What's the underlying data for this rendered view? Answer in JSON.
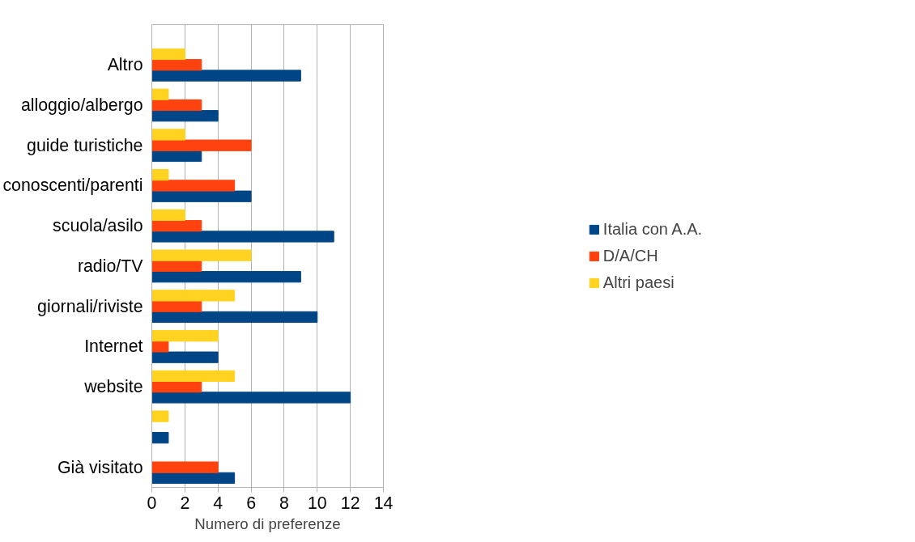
{
  "chart_data": {
    "type": "bar",
    "orientation": "horizontal",
    "xlabel": "Numero di preferenze",
    "categories": [
      "Altro",
      "alloggio/albergo",
      "guide turistiche",
      "conoscenti/parenti",
      "scuola/asilo",
      "radio/TV",
      "giornali/riviste",
      "Internet",
      "website",
      null,
      "Già visitato"
    ],
    "series": [
      {
        "name": "Italia con A.A.",
        "color": "#004586",
        "values": [
          9,
          4,
          3,
          6,
          11,
          9,
          10,
          4,
          12,
          1,
          5
        ]
      },
      {
        "name": "D/A/CH",
        "color": "#ff420e",
        "values": [
          3,
          3,
          6,
          5,
          3,
          3,
          3,
          1,
          3,
          0,
          4
        ]
      },
      {
        "name": "Altri paesi",
        "color": "#ffd320",
        "values": [
          2,
          1,
          2,
          1,
          2,
          6,
          5,
          4,
          5,
          1,
          0
        ]
      }
    ],
    "xlim": [
      0,
      14
    ],
    "xticks": [
      0,
      2,
      4,
      6,
      8,
      10,
      12,
      14
    ],
    "grid": "x",
    "legend": "right"
  }
}
